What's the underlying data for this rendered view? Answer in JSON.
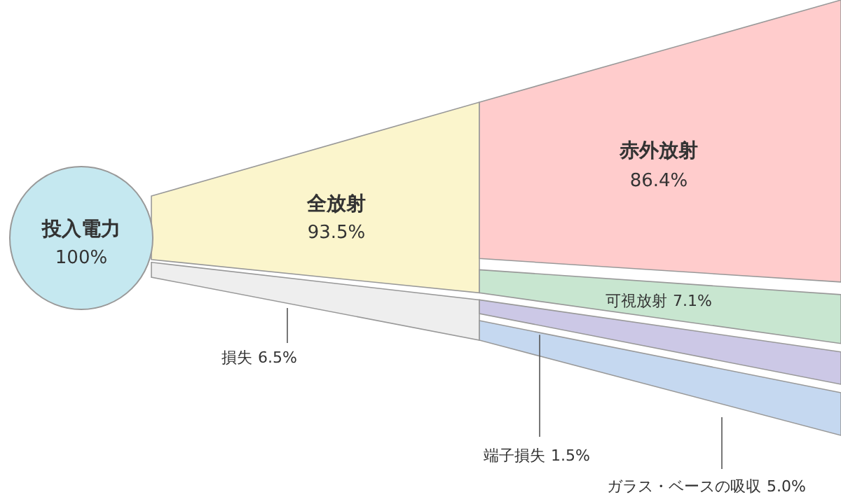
{
  "chart_data": {
    "type": "other",
    "categories": [
      "投入電力",
      "全放射",
      "損失",
      "赤外放射",
      "可視放射",
      "端子損失",
      "ガラス・ベースの吸収"
    ],
    "values": [
      100,
      93.5,
      6.5,
      86.4,
      7.1,
      1.5,
      5.0
    ],
    "value_labels": [
      "100%",
      "93.5%",
      "6.5%",
      "86.4%",
      "7.1%",
      "1.5%",
      "5.0%"
    ],
    "colors": [
      "#c5e8f0",
      "#fbf5cc",
      "#eeeeee",
      "#ffcccc",
      "#c8e6d0",
      "#ccc8e6",
      "#c5d8f0"
    ]
  }
}
